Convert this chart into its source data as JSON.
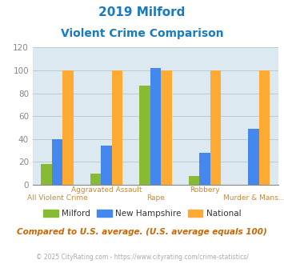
{
  "title_line1": "2019 Milford",
  "title_line2": "Violent Crime Comparison",
  "title_color": "#1a7abf",
  "milford": [
    18,
    10,
    87,
    8,
    0
  ],
  "new_hampshire": [
    40,
    34,
    102,
    28,
    49
  ],
  "national": [
    100,
    100,
    100,
    100,
    100
  ],
  "milford_color": "#88bb33",
  "new_hampshire_color": "#4488ee",
  "national_color": "#ffaa33",
  "ylim": [
    0,
    120
  ],
  "yticks": [
    0,
    20,
    40,
    60,
    80,
    100,
    120
  ],
  "background_color": "#dce9f0",
  "grid_color": "#b0c8cc",
  "top_labels": [
    "",
    "Aggravated Assault",
    "",
    "Robbery",
    ""
  ],
  "bot_labels": [
    "All Violent Crime",
    "",
    "Rape",
    "",
    "Murder & Mans..."
  ],
  "label_color": "#cc8833",
  "legend_labels": [
    "Milford",
    "New Hampshire",
    "National"
  ],
  "note": "Compared to U.S. average. (U.S. average equals 100)",
  "note_color": "#cc6600",
  "copyright": "© 2025 CityRating.com - https://www.cityrating.com/crime-statistics/",
  "copyright_color": "#aaaaaa",
  "bar_width": 0.22
}
